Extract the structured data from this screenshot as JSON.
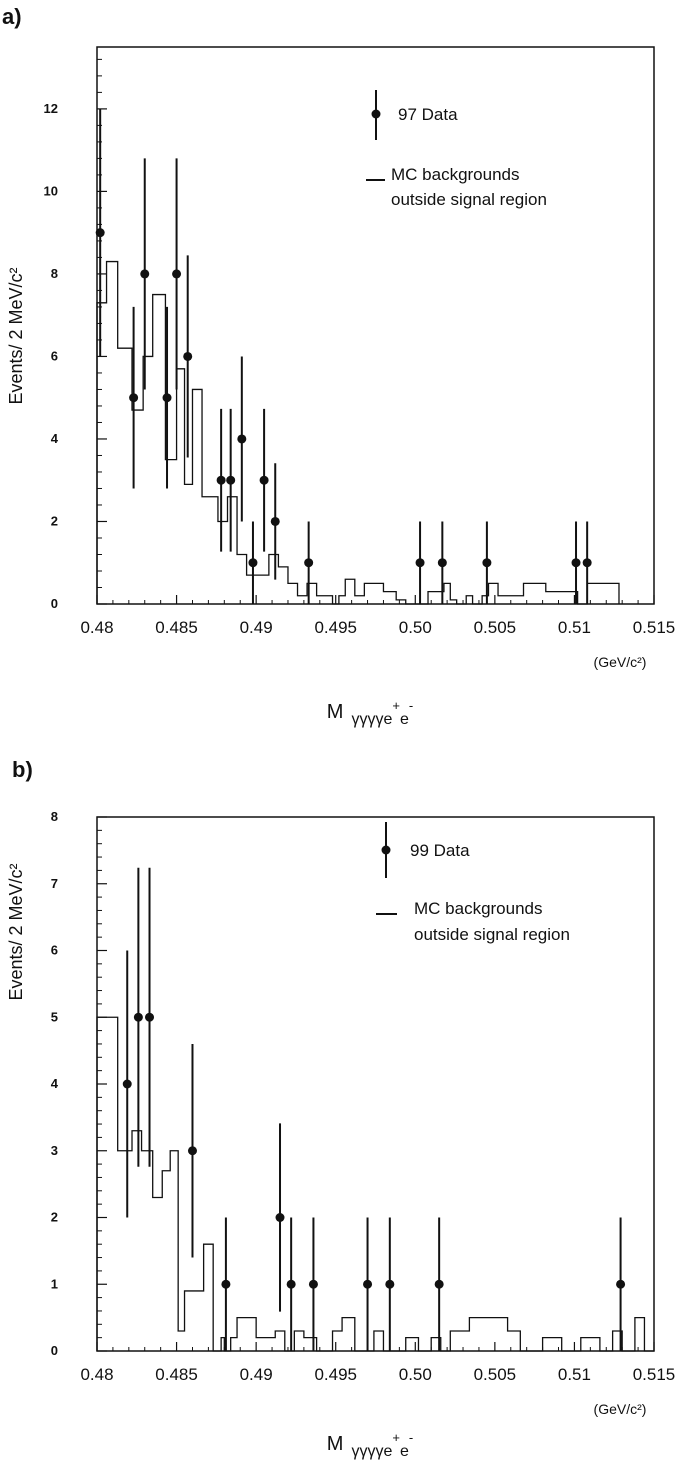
{
  "chart_data": [
    {
      "type": "histogram",
      "panel_label": "a)",
      "ylabel": "Events/ 2 MeV/c²",
      "xunit": "(GeV/c²)",
      "xlabel": {
        "main": "M",
        "sub": "γγγγe",
        "sup1": "+",
        "sub2": "e",
        "sup2": "-"
      },
      "xlim": [
        0.48,
        0.515
      ],
      "ylim": [
        0,
        13.5
      ],
      "x_ticks": [
        0.48,
        0.485,
        0.49,
        0.495,
        0.5,
        0.505,
        0.51,
        0.515
      ],
      "x_tick_labels": [
        "0.48",
        "0.485",
        "0.49",
        "0.495",
        "0.50",
        "0.505",
        "0.51",
        "0.515"
      ],
      "y_ticks": [
        0,
        2,
        4,
        6,
        8,
        10,
        12
      ],
      "y_tick_labels": [
        "0",
        "2",
        "4",
        "6",
        "8",
        "10",
        "12"
      ],
      "legend": {
        "data_label": "97 Data",
        "mc_label_1": "MC backgrounds",
        "mc_label_2": "outside signal region"
      },
      "data_points": [
        {
          "x": 0.4802,
          "y": 9,
          "err": 3
        },
        {
          "x": 0.4823,
          "y": 5,
          "err": 2.2
        },
        {
          "x": 0.483,
          "y": 8,
          "err": 2.8
        },
        {
          "x": 0.4844,
          "y": 5,
          "err": 2.2
        },
        {
          "x": 0.485,
          "y": 8,
          "err": 2.8
        },
        {
          "x": 0.4857,
          "y": 6,
          "err": 2.45
        },
        {
          "x": 0.4878,
          "y": 3,
          "err": 1.73
        },
        {
          "x": 0.4884,
          "y": 3,
          "err": 1.73
        },
        {
          "x": 0.4891,
          "y": 4,
          "err": 2
        },
        {
          "x": 0.4898,
          "y": 1,
          "err": 1
        },
        {
          "x": 0.4905,
          "y": 3,
          "err": 1.73
        },
        {
          "x": 0.4912,
          "y": 2,
          "err": 1.41
        },
        {
          "x": 0.4933,
          "y": 1,
          "err": 1
        },
        {
          "x": 0.5003,
          "y": 1,
          "err": 1
        },
        {
          "x": 0.5017,
          "y": 1,
          "err": 1
        },
        {
          "x": 0.5045,
          "y": 1,
          "err": 1
        },
        {
          "x": 0.5101,
          "y": 1,
          "err": 1
        },
        {
          "x": 0.5108,
          "y": 1,
          "err": 1
        }
      ],
      "mc_histogram": {
        "edges": [
          0.48,
          0.4806,
          0.4813,
          0.4822,
          0.4829,
          0.4835,
          0.4843,
          0.485,
          0.4855,
          0.486,
          0.4866,
          0.4876,
          0.4882,
          0.4888,
          0.4894,
          0.4908,
          0.4914,
          0.492,
          0.4926,
          0.4932,
          0.4938,
          0.4948,
          0.4952,
          0.4956,
          0.4962,
          0.4968,
          0.498,
          0.4988,
          0.4994,
          0.5008,
          0.5018,
          0.5022,
          0.5026,
          0.5032,
          0.5036,
          0.5042,
          0.5046,
          0.5052,
          0.5068,
          0.5082,
          0.5102,
          0.5108,
          0.5128
        ],
        "values": [
          7.3,
          8.3,
          6.2,
          4.7,
          6.0,
          7.5,
          3.5,
          5.7,
          2.9,
          5.2,
          2.6,
          2.0,
          2.6,
          1.2,
          0.7,
          1.2,
          0.9,
          0.5,
          0.2,
          0.5,
          0.2,
          0.0,
          0.2,
          0.6,
          0.2,
          0.5,
          0.3,
          0.1,
          0.0,
          0.3,
          0.5,
          0.1,
          0.0,
          0.2,
          0.0,
          0.2,
          0.5,
          0.2,
          0.5,
          0.3,
          0.0,
          0.5
        ]
      }
    },
    {
      "type": "histogram",
      "panel_label": "b)",
      "ylabel": "Events/ 2 MeV/c²",
      "xunit": "(GeV/c²)",
      "xlabel": {
        "main": "M",
        "sub": "γγγγe",
        "sup1": "+",
        "sub2": "e",
        "sup2": "-"
      },
      "xlim": [
        0.48,
        0.515
      ],
      "ylim": [
        0,
        8
      ],
      "x_ticks": [
        0.48,
        0.485,
        0.49,
        0.495,
        0.5,
        0.505,
        0.51,
        0.515
      ],
      "x_tick_labels": [
        "0.48",
        "0.485",
        "0.49",
        "0.495",
        "0.50",
        "0.505",
        "0.51",
        "0.515"
      ],
      "y_ticks": [
        0,
        1,
        2,
        3,
        4,
        5,
        6,
        7,
        8
      ],
      "y_tick_labels": [
        "0",
        "1",
        "2",
        "3",
        "4",
        "5",
        "6",
        "7",
        "8"
      ],
      "legend": {
        "data_label": "99 Data",
        "mc_label_1": "MC backgrounds",
        "mc_label_2": "outside signal region"
      },
      "data_points": [
        {
          "x": 0.4819,
          "y": 4,
          "err": 2
        },
        {
          "x": 0.4826,
          "y": 5,
          "err": 2.24
        },
        {
          "x": 0.4833,
          "y": 5,
          "err": 2.24
        },
        {
          "x": 0.486,
          "y": 3,
          "err": 1.6
        },
        {
          "x": 0.4881,
          "y": 1,
          "err": 1
        },
        {
          "x": 0.4915,
          "y": 2,
          "err": 1.41
        },
        {
          "x": 0.4922,
          "y": 1,
          "err": 1
        },
        {
          "x": 0.4936,
          "y": 1,
          "err": 1
        },
        {
          "x": 0.497,
          "y": 1,
          "err": 1
        },
        {
          "x": 0.4984,
          "y": 1,
          "err": 1
        },
        {
          "x": 0.5015,
          "y": 1,
          "err": 1
        },
        {
          "x": 0.5129,
          "y": 1,
          "err": 1
        }
      ],
      "mc_histogram": {
        "edges": [
          0.48,
          0.4813,
          0.4822,
          0.4828,
          0.4835,
          0.4841,
          0.4846,
          0.4851,
          0.4855,
          0.4867,
          0.4873,
          0.4878,
          0.488,
          0.4884,
          0.4888,
          0.4892,
          0.49,
          0.4912,
          0.4918,
          0.4924,
          0.493,
          0.4938,
          0.4948,
          0.4954,
          0.4962,
          0.4974,
          0.498,
          0.4994,
          0.5002,
          0.501,
          0.5016,
          0.5022,
          0.5034,
          0.5058,
          0.5066,
          0.508,
          0.5092,
          0.5104,
          0.5116,
          0.5124,
          0.513,
          0.5138,
          0.5144,
          0.515
        ],
        "values": [
          5.0,
          3.0,
          3.3,
          3.0,
          2.3,
          2.7,
          3.0,
          0.3,
          0.9,
          1.6,
          0.0,
          0.2,
          0.0,
          0.2,
          0.5,
          0.5,
          0.2,
          0.3,
          0.0,
          0.3,
          0.2,
          0.0,
          0.3,
          0.5,
          0.0,
          0.3,
          0.0,
          0.2,
          0.0,
          0.2,
          0.0,
          0.3,
          0.5,
          0.3,
          0.0,
          0.2,
          0.0,
          0.2,
          0.0,
          0.3,
          0.0,
          0.5,
          0.0
        ]
      }
    }
  ]
}
